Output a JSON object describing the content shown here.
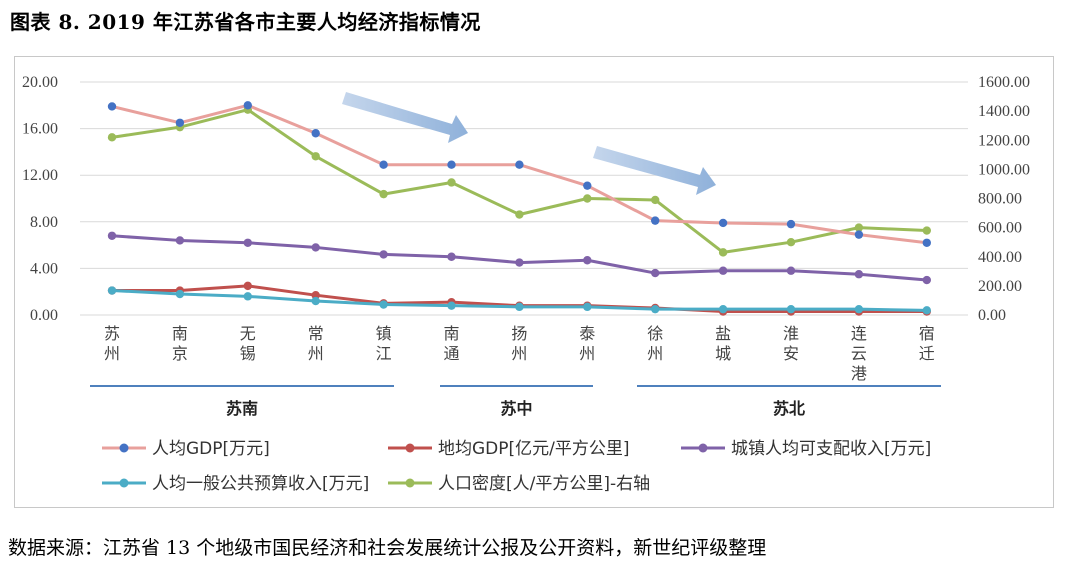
{
  "figure": {
    "title": "图表 8. 2019 年江苏省各市主要人均经济指标情况",
    "source": "数据来源：江苏省 13 个地级市国民经济和社会发展统计公报及公开资料，新世纪评级整理"
  },
  "chart_data": {
    "type": "line",
    "categories": [
      "苏州",
      "南京",
      "无锡",
      "常州",
      "镇江",
      "南通",
      "扬州",
      "泰州",
      "徐州",
      "盐城",
      "淮安",
      "连云港",
      "宿迁"
    ],
    "y_left": {
      "ticks": [
        "0.00",
        "4.00",
        "8.00",
        "12.00",
        "16.00",
        "20.00"
      ],
      "range": [
        0,
        20
      ]
    },
    "y_right": {
      "ticks": [
        "0.00",
        "200.00",
        "400.00",
        "600.00",
        "800.00",
        "1000.00",
        "1200.00",
        "1400.00",
        "1600.00"
      ],
      "range": [
        0,
        1600
      ]
    },
    "series": [
      {
        "name": "人均GDP[万元]",
        "axis": "left",
        "color": "#e8a09c",
        "marker": "#4472c4",
        "values": [
          17.9,
          16.5,
          18.0,
          15.6,
          12.9,
          12.9,
          12.9,
          11.1,
          8.1,
          7.9,
          7.8,
          6.9,
          6.2
        ]
      },
      {
        "name": "地均GDP[亿元/平方公里]",
        "axis": "left",
        "color": "#c0504d",
        "marker": "#c0504d",
        "values": [
          2.1,
          2.1,
          2.5,
          1.7,
          1.0,
          1.1,
          0.8,
          0.8,
          0.6,
          0.3,
          0.3,
          0.3,
          0.3
        ]
      },
      {
        "name": "城镇人均可支配收入[万元]",
        "axis": "left",
        "color": "#7f62a8",
        "marker": "#7f62a8",
        "values": [
          6.8,
          6.4,
          6.2,
          5.8,
          5.2,
          5.0,
          4.5,
          4.7,
          3.6,
          3.8,
          3.8,
          3.5,
          3.0
        ]
      },
      {
        "name": "人均一般公共预算收入[万元]",
        "axis": "left",
        "color": "#4bacc6",
        "marker": "#4bacc6",
        "values": [
          2.1,
          1.8,
          1.6,
          1.2,
          0.9,
          0.8,
          0.7,
          0.7,
          0.5,
          0.5,
          0.5,
          0.5,
          0.4
        ]
      },
      {
        "name": "人口密度[人/平方公里]-右轴",
        "axis": "right",
        "color": "#9bbb59",
        "marker": "#9bbb59",
        "values": [
          1220,
          1290,
          1410,
          1090,
          830,
          910,
          690,
          800,
          790,
          430,
          500,
          600,
          580
        ]
      }
    ],
    "regions": [
      "苏南",
      "苏中",
      "苏北"
    ],
    "grid": "horizontal"
  }
}
